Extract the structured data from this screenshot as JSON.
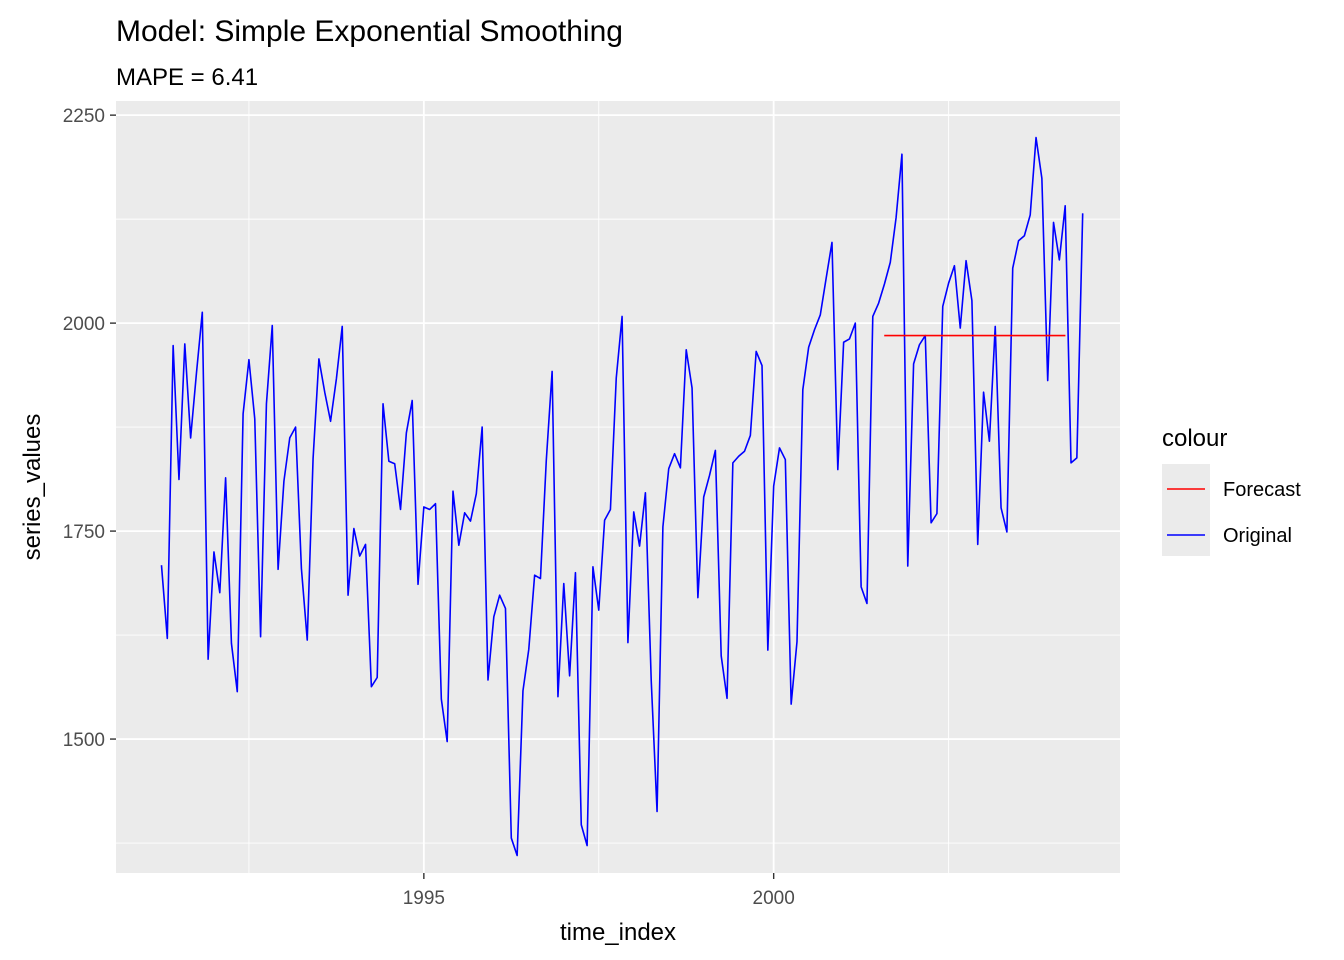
{
  "chart_data": {
    "type": "line",
    "title": "Model:  Simple Exponential Smoothing",
    "subtitle": "MAPE = 6.41",
    "xlabel": "time_index",
    "ylabel": "series_values",
    "xlim": [
      1990.6,
      2004.95
    ],
    "ylim": [
      1339,
      2267
    ],
    "x_ticks": [
      1995,
      2000
    ],
    "x_tick_labels": [
      "1995",
      "2000"
    ],
    "y_ticks": [
      1500,
      1750,
      2000,
      2250
    ],
    "y_tick_labels": [
      "1500",
      "1750",
      "2000",
      "2250"
    ],
    "grid": true,
    "legend": {
      "title": "colour",
      "placement": "right",
      "entries": [
        "Forecast",
        "Original"
      ]
    },
    "colors": {
      "panel": "#ebebeb",
      "grid": "#ffffff",
      "Forecast": "#ff0000",
      "Original": "#0000ff"
    },
    "series": [
      {
        "name": "Original",
        "x_start": 1991.25,
        "x_step": 0.08333333,
        "values": [
          1709,
          1621,
          1973,
          1812,
          1975,
          1862,
          1940,
          2013,
          1596,
          1725,
          1676,
          1814,
          1615,
          1557,
          1891,
          1956,
          1885,
          1623,
          1903,
          1997,
          1704,
          1810,
          1862,
          1875,
          1705,
          1619,
          1837,
          1957,
          1917,
          1882,
          1933,
          1996,
          1673,
          1753,
          1720,
          1734,
          1563,
          1574,
          1903,
          1834,
          1831,
          1776,
          1868,
          1907,
          1686,
          1779,
          1776,
          1783,
          1548,
          1497,
          1798,
          1733,
          1772,
          1762,
          1795,
          1875,
          1571,
          1647,
          1673,
          1657,
          1381,
          1360,
          1558,
          1608,
          1697,
          1693,
          1835,
          1942,
          1551,
          1687,
          1576,
          1700,
          1397,
          1372,
          1707,
          1655,
          1763,
          1776,
          1934,
          2008,
          1616,
          1773,
          1732,
          1796,
          1570,
          1413,
          1755,
          1825,
          1843,
          1826,
          1968,
          1922,
          1670,
          1791,
          1817,
          1847,
          1600,
          1549,
          1832,
          1840,
          1846,
          1865,
          1966,
          1949,
          1607,
          1804,
          1850,
          1836,
          1542,
          1617,
          1920,
          1971,
          1992,
          2010,
          2054,
          2097,
          1824,
          1977,
          1981,
          2000,
          1683,
          1663,
          2008,
          2024,
          2047,
          2073,
          2127,
          2203,
          1708,
          1951,
          1974,
          1985,
          1760,
          1771,
          2020,
          2048,
          2069,
          1994,
          2075,
          2027,
          1734,
          1917,
          1858,
          1996,
          1778,
          1749,
          2066,
          2099,
          2105,
          2130,
          2223,
          2174,
          1931,
          2121,
          2076,
          2141,
          1832,
          1838,
          2132
        ]
      },
      {
        "name": "Forecast",
        "x": [
          2001.58,
          2004.17
        ],
        "values": [
          1985,
          1985
        ]
      }
    ]
  }
}
